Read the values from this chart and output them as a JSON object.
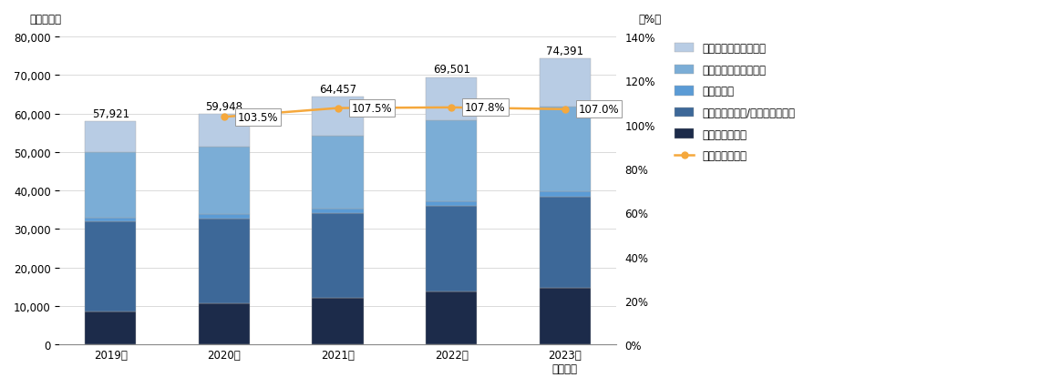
{
  "years": [
    "2019年",
    "2020年",
    "2021年",
    "2022年",
    "2023年\n（見込）"
  ],
  "totals": [
    57921,
    59948,
    64457,
    69501,
    74391
  ],
  "yoy": [
    null,
    103.5,
    107.5,
    107.8,
    107.0
  ],
  "segments": {
    "生理（月経）系": [
      8500,
      10800,
      12200,
      13700,
      14700
    ],
    "不妊・妊よう性/妊娠・産後ケア": [
      23500,
      22000,
      21800,
      22300,
      23700
    ],
    "更年期ケア": [
      1000,
      1000,
      1200,
      1300,
      1400
    ],
    "ウィメンズヘルスケア": [
      17000,
      17500,
      19000,
      21000,
      22000
    ],
    "セクシャルウェルネス": [
      7921,
      8648,
      10257,
      11201,
      12591
    ]
  },
  "colors": {
    "生理（月経）系": "#1c2b4a",
    "不妊・妊よう性/妊娠・産後ケア": "#3d6898",
    "更年期ケア": "#5b9bd5",
    "ウィメンズヘルスケア": "#7badd6",
    "セクシャルウェルネス": "#b8cce4"
  },
  "line_color": "#f5a83c",
  "ylim_left": [
    0,
    80000
  ],
  "ytick_left_vals": [
    0,
    10000,
    20000,
    30000,
    40000,
    50000,
    60000,
    70000,
    80000
  ],
  "yoy_right_ticks": [
    0,
    20,
    40,
    60,
    80,
    100,
    120,
    140
  ],
  "ylabel_left": "（百万円）",
  "ylabel_right": "（%）",
  "bg_color": "#ffffff",
  "grid_color": "#cccccc",
  "legend_order": [
    "セクシャルウェルネス",
    "ウィメンズヘルスケア",
    "更年期ケア",
    "不妊・妊よう性/妊娠・産後ケア",
    "生理（月経）系"
  ],
  "legend_line_label": "前年比（全体）"
}
